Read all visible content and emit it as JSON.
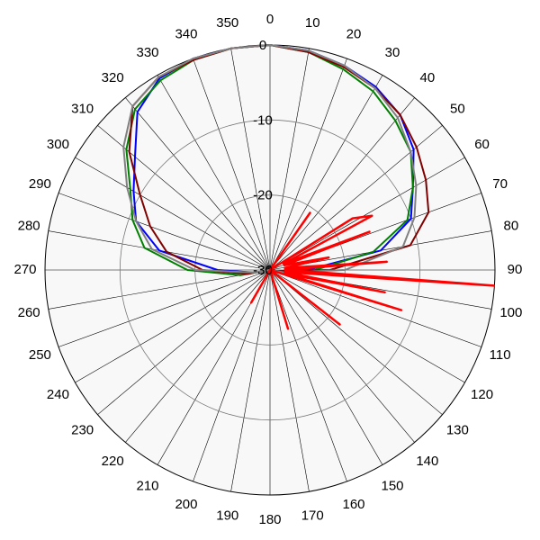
{
  "chart_data": {
    "type": "polar",
    "theta": [
      0,
      10,
      20,
      30,
      40,
      50,
      60,
      70,
      80,
      90,
      100,
      110,
      120,
      130,
      140,
      150,
      160,
      170,
      180,
      190,
      200,
      210,
      220,
      230,
      240,
      250,
      260,
      270,
      280,
      290,
      300,
      310,
      320,
      330,
      340,
      350
    ],
    "thetaticks": [
      0,
      10,
      20,
      30,
      40,
      50,
      60,
      70,
      80,
      90,
      100,
      110,
      120,
      130,
      140,
      150,
      160,
      170,
      180,
      190,
      200,
      210,
      220,
      230,
      240,
      250,
      260,
      270,
      280,
      290,
      300,
      310,
      320,
      330,
      340,
      350
    ],
    "rlim": [
      -30,
      0
    ],
    "rticks": [
      -30,
      -20,
      -10,
      0
    ],
    "grid": true,
    "series": [
      {
        "color": "#0000ff",
        "values": [
          0,
          -0.3,
          -1,
          -1.8,
          -3,
          -5,
          -8,
          -10,
          -15,
          -25,
          -29,
          -30,
          -30,
          -30,
          -30,
          -30,
          -30,
          -30,
          -30,
          -30,
          -30,
          -30,
          -30,
          -30,
          -30,
          -30,
          -28,
          -23,
          -15,
          -11,
          -9,
          -6.5,
          -2.5,
          -0.5,
          0,
          0
        ]
      },
      {
        "color": "#008000",
        "values": [
          0,
          -0.5,
          -1.5,
          -2.5,
          -4,
          -5.5,
          -8,
          -10.5,
          -16,
          -24,
          -29,
          -30,
          -30,
          -30,
          -30,
          -30,
          -30,
          -30,
          -30,
          -30,
          -30,
          -30,
          -30,
          -30,
          -30,
          -30,
          -26,
          -19,
          -13,
          -10.5,
          -8.5,
          -5,
          -2,
          -0.8,
          -0.2,
          0
        ]
      },
      {
        "color": "#800000",
        "values": [
          0,
          -0.5,
          -1.2,
          -2,
          -3,
          -4.5,
          -6,
          -7.5,
          -11,
          -22,
          -29,
          -30,
          -30,
          -30,
          -30,
          -30,
          -30,
          -30,
          -30,
          -30,
          -30,
          -30,
          -30,
          -30,
          -30,
          -30,
          -27,
          -21,
          -16,
          -13,
          -10,
          -5.5,
          -1.5,
          -0.3,
          -0.2,
          0
        ]
      },
      {
        "color": "#808080",
        "values": [
          0,
          -0.3,
          -1,
          -2,
          -3.5,
          -5.5,
          -7.5,
          -9.5,
          -12,
          -20,
          -28,
          -30,
          -30,
          -30,
          -30,
          -30,
          -30,
          -30,
          -30,
          -30,
          -30,
          -30,
          -30,
          -30,
          -30,
          -30,
          -28,
          -20,
          -14,
          -11,
          -8,
          -4.5,
          -1.5,
          -0.3,
          0,
          0
        ]
      },
      {
        "color": "#ff0000",
        "theta": [
          0,
          30,
          35,
          40,
          50,
          58,
          62,
          65,
          69,
          72,
          78,
          82,
          86,
          89,
          94,
          98,
          101,
          104,
          107,
          112,
          128,
          140,
          163,
          170,
          200,
          210,
          220,
          355
        ],
        "values": [
          -30,
          -30,
          -20.7,
          -30,
          -30,
          -17,
          -14.6,
          -28,
          -15.8,
          -28,
          -22,
          -28,
          -14.4,
          -28,
          -0.1,
          -28,
          -14.4,
          -28,
          -11.7,
          -30,
          -18.2,
          -30,
          -21.8,
          -30,
          -30,
          -25,
          -30,
          -30
        ]
      }
    ]
  }
}
